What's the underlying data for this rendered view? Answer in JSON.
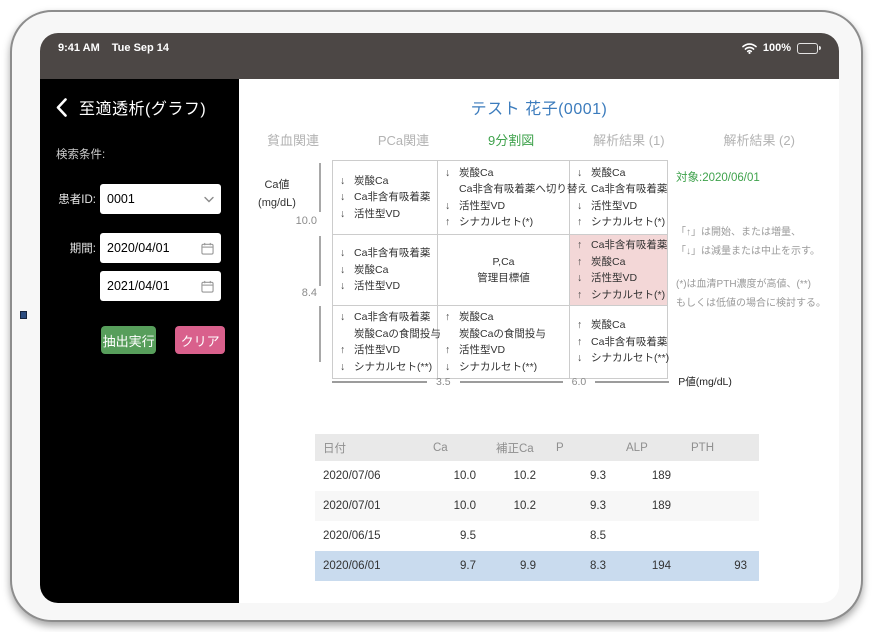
{
  "status_bar": {
    "time": "9:41 AM",
    "date": "Tue Sep 14",
    "battery": "100%"
  },
  "sidebar": {
    "title": "至適透析(グラフ)",
    "search_conditions_label": "検索条件:",
    "patient_id_label": "患者ID:",
    "patient_id_value": "0001",
    "period_label": "期間:",
    "period_from": "2020/04/01",
    "period_to": "2021/04/01",
    "execute_button": "抽出実行",
    "clear_button": "クリア"
  },
  "main": {
    "patient_title": "テスト 花子(0001)",
    "tabs": [
      {
        "label": "貧血関連",
        "active": false
      },
      {
        "label": "PCa関連",
        "active": false
      },
      {
        "label": "9分割図",
        "active": true
      },
      {
        "label": "解析結果 (1)",
        "active": false
      },
      {
        "label": "解析結果 (2)",
        "active": false
      }
    ],
    "target_date_label": "対象:2020/06/01",
    "legend_notes": [
      "「↑」は開始、または増量、",
      "「↓」は減量または中止を示す。",
      "(*)は血清PTH濃度が高値、(**)",
      "もしくは低値の場合に検討する。"
    ]
  },
  "chart_data": {
    "type": "table",
    "title": "9分割図",
    "ylabel_line1": "Ca値",
    "ylabel_line2": "(mg/dL)",
    "xlabel": "P値(mg/dL)",
    "y_ticks": [
      "10.0",
      "8.4"
    ],
    "x_ticks": [
      "3.5",
      "6.0"
    ],
    "highlight_color": "#f3d7d7",
    "cells": [
      {
        "pos": "top-left",
        "highlight": false,
        "center": false,
        "lines": [
          {
            "arrow": "↓",
            "text": "炭酸Ca"
          },
          {
            "arrow": "↓",
            "text": "Ca非含有吸着薬"
          },
          {
            "arrow": "↓",
            "text": "活性型VD"
          }
        ]
      },
      {
        "pos": "top-center",
        "highlight": false,
        "center": false,
        "lines": [
          {
            "arrow": "↓",
            "text": "炭酸Ca"
          },
          {
            "arrow": "",
            "text": "Ca非含有吸着薬へ切り替え"
          },
          {
            "arrow": "↓",
            "text": "活性型VD"
          },
          {
            "arrow": "↑",
            "text": "シナカルセト(*)"
          }
        ]
      },
      {
        "pos": "top-right",
        "highlight": false,
        "center": false,
        "lines": [
          {
            "arrow": "↓",
            "text": "炭酸Ca"
          },
          {
            "arrow": "↑",
            "text": "Ca非含有吸着薬"
          },
          {
            "arrow": "↓",
            "text": "活性型VD"
          },
          {
            "arrow": "↑",
            "text": "シナカルセト(*)"
          }
        ]
      },
      {
        "pos": "middle-left",
        "highlight": false,
        "center": false,
        "lines": [
          {
            "arrow": "↓",
            "text": "Ca非含有吸着薬"
          },
          {
            "arrow": "↓",
            "text": "炭酸Ca"
          },
          {
            "arrow": "↓",
            "text": "活性型VD"
          }
        ]
      },
      {
        "pos": "middle-center",
        "highlight": false,
        "center": true,
        "lines": [
          {
            "arrow": "",
            "text": "P,Ca"
          },
          {
            "arrow": "",
            "text": "管理目標値"
          }
        ]
      },
      {
        "pos": "middle-right",
        "highlight": true,
        "center": false,
        "lines": [
          {
            "arrow": "↑",
            "text": "Ca非含有吸着薬"
          },
          {
            "arrow": "↑",
            "text": "炭酸Ca"
          },
          {
            "arrow": "↓",
            "text": "活性型VD"
          },
          {
            "arrow": "↑",
            "text": "シナカルセト(*)"
          }
        ]
      },
      {
        "pos": "bottom-left",
        "highlight": false,
        "center": false,
        "lines": [
          {
            "arrow": "↓",
            "text": "Ca非含有吸着薬"
          },
          {
            "arrow": "",
            "text": "炭酸Caの食間投与"
          },
          {
            "arrow": "↑",
            "text": "活性型VD"
          },
          {
            "arrow": "↓",
            "text": "シナカルセト(**)"
          }
        ]
      },
      {
        "pos": "bottom-center",
        "highlight": false,
        "center": false,
        "lines": [
          {
            "arrow": "↑",
            "text": "炭酸Ca"
          },
          {
            "arrow": "",
            "text": "炭酸Caの食間投与"
          },
          {
            "arrow": "↑",
            "text": "活性型VD"
          },
          {
            "arrow": "↓",
            "text": "シナカルセト(**)"
          }
        ]
      },
      {
        "pos": "bottom-right",
        "highlight": false,
        "center": false,
        "lines": [
          {
            "arrow": "↑",
            "text": "炭酸Ca"
          },
          {
            "arrow": "↑",
            "text": "Ca非含有吸着薬"
          },
          {
            "arrow": "↓",
            "text": "シナカルセト(**)"
          }
        ]
      }
    ]
  },
  "table": {
    "headers": [
      "日付",
      "Ca",
      "補正Ca",
      "P",
      "ALP",
      "PTH"
    ],
    "rows": [
      {
        "values": [
          "2020/07/06",
          "10.0",
          "10.2",
          "9.3",
          "189",
          ""
        ],
        "selected": false
      },
      {
        "values": [
          "2020/07/01",
          "10.0",
          "10.2",
          "9.3",
          "189",
          ""
        ],
        "selected": false
      },
      {
        "values": [
          "2020/06/15",
          "9.5",
          "",
          "8.5",
          "",
          ""
        ],
        "selected": false
      },
      {
        "values": [
          "2020/06/01",
          "9.7",
          "9.9",
          "8.3",
          "194",
          "93"
        ],
        "selected": true
      }
    ]
  },
  "colors": {
    "accent_blue": "#3c7cbd",
    "accent_green": "#3fa24c",
    "button_green": "#579e5b",
    "button_pink": "#d9608c",
    "highlight_pink": "#f3d7d7",
    "selected_row_blue": "#c9dbee",
    "statusbar_gray": "#4c4745"
  }
}
